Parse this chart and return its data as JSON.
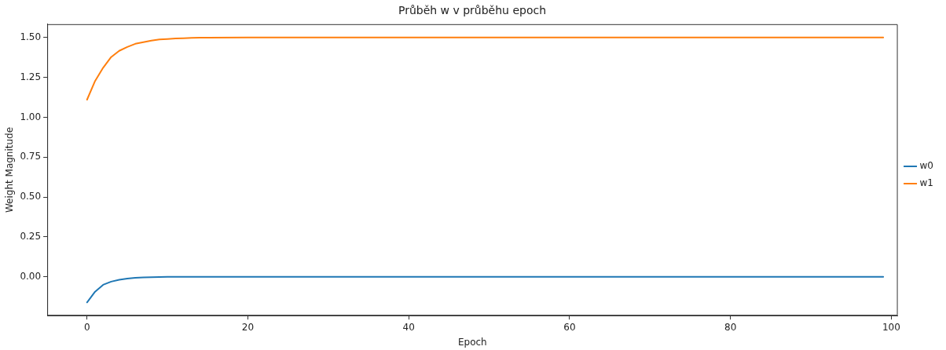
{
  "chart_data": {
    "type": "line",
    "title": "Průběh w v průběhu epoch",
    "xlabel": "Epoch",
    "ylabel": "Weight Magnitude",
    "x": [
      0,
      1,
      2,
      3,
      4,
      5,
      6,
      7,
      8,
      9,
      10,
      11,
      12,
      13,
      14,
      15,
      20,
      30,
      40,
      50,
      60,
      70,
      80,
      90,
      99
    ],
    "series": [
      {
        "name": "w0",
        "color": "#1f77b4",
        "values": [
          -0.16,
          -0.093,
          -0.05,
          -0.03,
          -0.018,
          -0.011,
          -0.006,
          -0.004,
          -0.002,
          -0.001,
          0,
          0,
          0,
          0,
          0,
          0,
          0,
          0,
          0,
          0,
          0,
          0,
          0,
          0,
          0
        ]
      },
      {
        "name": "w1",
        "color": "#ff7f0e",
        "values": [
          1.11,
          1.227,
          1.31,
          1.377,
          1.416,
          1.44,
          1.46,
          1.47,
          1.48,
          1.487,
          1.49,
          1.493,
          1.495,
          1.497,
          1.498,
          1.498,
          1.5,
          1.5,
          1.5,
          1.5,
          1.5,
          1.5,
          1.5,
          1.5,
          1.5
        ]
      }
    ],
    "xlim": [
      -4.95,
      100.8
    ],
    "xticks": [
      0,
      20,
      40,
      60,
      80,
      100
    ],
    "ylim": [
      -0.243,
      1.583
    ],
    "yticks": [
      {
        "value": 0,
        "label": "0.00"
      },
      {
        "value": 0.25,
        "label": "0.25"
      },
      {
        "value": 0.5,
        "label": "0.50"
      },
      {
        "value": 0.75,
        "label": "0.75"
      },
      {
        "value": 1,
        "label": "1.00"
      },
      {
        "value": 1.25,
        "label": "1.25"
      },
      {
        "value": 1.5,
        "label": "1.50"
      }
    ],
    "grid": false,
    "legend": "right",
    "marker": "none",
    "line_style": "solid"
  }
}
